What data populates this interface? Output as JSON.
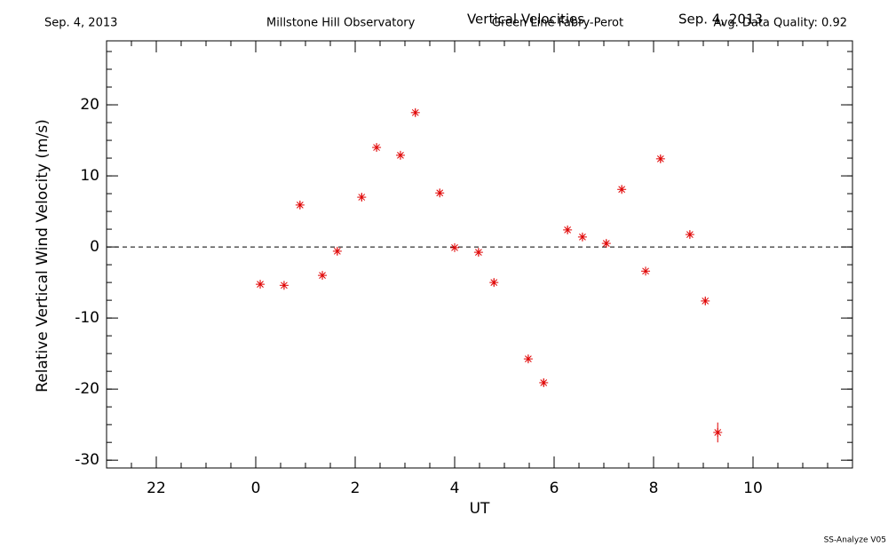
{
  "chart_data": {
    "type": "scatter",
    "header_left": "Sep. 4, 2013",
    "header_observatory": "Millstone Hill Observatory",
    "title": "Vertical Velocities",
    "subtitle": "Green Line Fabry-Perot",
    "header_date_right": "Sep. 4, 2013",
    "header_quality": "Avg. Data Quality: 0.92",
    "footer": "SS-Analyze V05",
    "xlabel": "UT",
    "ylabel": "Relative Vertical Wind Velocity (m/s)",
    "xlim": [
      -3,
      12
    ],
    "xticks": [
      {
        "value": -2,
        "label": "22"
      },
      0,
      2,
      4,
      6,
      8,
      10
    ],
    "x_minor_step": 0.5,
    "ylim": [
      -31.1,
      29
    ],
    "yticks": [
      -30,
      -20,
      -10,
      0,
      10,
      20
    ],
    "y_minor_step": 2.5,
    "zero_line": true,
    "color": "#e00000",
    "x": [
      0.09,
      0.57,
      0.89,
      1.34,
      1.64,
      2.13,
      2.43,
      2.91,
      3.21,
      3.7,
      4.0,
      4.48,
      4.79,
      5.48,
      5.79,
      6.27,
      6.57,
      7.05,
      7.36,
      7.84,
      8.14,
      8.73,
      9.04,
      9.29
    ],
    "values": [
      -5.25,
      -5.4,
      5.9,
      -4.0,
      -0.6,
      7.0,
      14.0,
      12.9,
      18.9,
      7.6,
      -0.1,
      -0.75,
      -5.0,
      -15.75,
      -19.1,
      2.4,
      1.4,
      0.5,
      8.1,
      -3.4,
      12.4,
      1.75,
      -7.6,
      -26.1
    ],
    "errors": [
      0.5,
      0.5,
      0.5,
      0.5,
      0.5,
      0.5,
      0.5,
      0.5,
      0.5,
      0.5,
      0.5,
      0.5,
      0.5,
      0.5,
      0.5,
      0.5,
      0.5,
      0.5,
      0.5,
      0.5,
      0.5,
      0.5,
      0.5,
      1.4
    ]
  }
}
